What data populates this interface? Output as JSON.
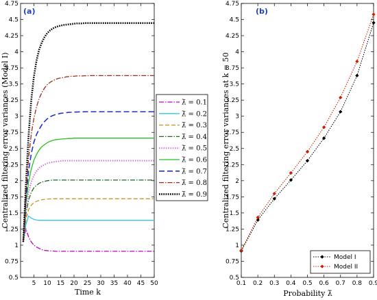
{
  "chart_data": [
    {
      "type": "line",
      "panel_label": "(a)",
      "xlabel": "Time k",
      "ylabel": "Centralized filtering error variances (Model I)",
      "xlim": [
        0,
        50
      ],
      "ylim": [
        0.5,
        4.75
      ],
      "xticks": [
        5,
        10,
        15,
        20,
        25,
        30,
        35,
        40,
        45,
        50
      ],
      "yticks": [
        0.5,
        0.75,
        1,
        1.25,
        1.5,
        1.75,
        2,
        2.25,
        2.5,
        2.75,
        3,
        3.25,
        3.5,
        3.75,
        4,
        4.25,
        4.5,
        4.75
      ],
      "legend_position": "right-outside",
      "x": [
        1,
        2,
        3,
        4,
        5,
        6,
        7,
        8,
        9,
        10,
        11,
        12,
        13,
        14,
        15,
        16,
        17,
        18,
        19,
        20,
        21,
        22,
        23,
        24,
        25,
        26,
        27,
        28,
        29,
        30,
        31,
        32,
        33,
        34,
        35,
        36,
        37,
        38,
        39,
        40,
        41,
        42,
        43,
        44,
        45,
        46,
        47,
        48,
        49,
        50
      ],
      "series": [
        {
          "name": "λ̄ = 0.1",
          "color": "#c000c0",
          "dash": "7 2 1.5 2",
          "width": 1.3,
          "values": [
            1.05,
            1.25,
            1.13,
            1.05,
            1.0,
            0.97,
            0.95,
            0.93,
            0.92,
            0.915,
            0.91,
            0.91,
            0.905,
            0.905,
            0.905,
            0.905,
            0.905,
            0.905,
            0.905,
            0.905,
            0.905,
            0.905,
            0.905,
            0.905,
            0.905,
            0.905,
            0.905,
            0.905,
            0.905,
            0.905,
            0.905,
            0.905,
            0.905,
            0.905,
            0.905,
            0.905,
            0.905,
            0.905,
            0.905,
            0.905,
            0.905,
            0.905,
            0.905,
            0.905,
            0.905,
            0.905,
            0.905,
            0.905,
            0.905,
            0.905
          ]
        },
        {
          "name": "λ̄ = 0.2",
          "color": "#30c8e8",
          "dash": "",
          "width": 1.3,
          "values": [
            1.05,
            1.32,
            1.45,
            1.42,
            1.4,
            1.39,
            1.385,
            1.385,
            1.385,
            1.385,
            1.385,
            1.385,
            1.385,
            1.385,
            1.385,
            1.385,
            1.385,
            1.385,
            1.385,
            1.385,
            1.385,
            1.385,
            1.385,
            1.385,
            1.385,
            1.385,
            1.385,
            1.385,
            1.385,
            1.385,
            1.385,
            1.385,
            1.385,
            1.385,
            1.385,
            1.385,
            1.385,
            1.385,
            1.385,
            1.385,
            1.385,
            1.385,
            1.385,
            1.385,
            1.385,
            1.385,
            1.385,
            1.385,
            1.385,
            1.385
          ]
        },
        {
          "name": "λ̄ = 0.3",
          "color": "#c8961e",
          "dash": "6 3",
          "width": 1.3,
          "values": [
            1.05,
            1.4,
            1.55,
            1.62,
            1.66,
            1.68,
            1.695,
            1.705,
            1.71,
            1.715,
            1.718,
            1.72,
            1.72,
            1.72,
            1.72,
            1.72,
            1.72,
            1.72,
            1.72,
            1.72,
            1.72,
            1.72,
            1.72,
            1.72,
            1.72,
            1.72,
            1.72,
            1.72,
            1.72,
            1.72,
            1.72,
            1.72,
            1.72,
            1.72,
            1.72,
            1.72,
            1.72,
            1.72,
            1.72,
            1.72,
            1.72,
            1.72,
            1.72,
            1.72,
            1.72,
            1.72,
            1.72,
            1.72,
            1.72,
            1.72
          ]
        },
        {
          "name": "λ̄ = 0.4",
          "color": "#1a6b1a",
          "dash": "7 2 1.5 2",
          "width": 1.3,
          "values": [
            1.05,
            1.48,
            1.7,
            1.82,
            1.89,
            1.93,
            1.96,
            1.98,
            1.99,
            2.0,
            2.005,
            2.01,
            2.01,
            2.01,
            2.01,
            2.01,
            2.01,
            2.01,
            2.01,
            2.01,
            2.01,
            2.01,
            2.01,
            2.01,
            2.01,
            2.01,
            2.01,
            2.01,
            2.01,
            2.01,
            2.01,
            2.01,
            2.01,
            2.01,
            2.01,
            2.01,
            2.01,
            2.01,
            2.01,
            2.01,
            2.01,
            2.01,
            2.01,
            2.01,
            2.01,
            2.01,
            2.01,
            2.01,
            2.01,
            2.01
          ]
        },
        {
          "name": "λ̄ = 0.5",
          "color": "#d070d0",
          "dash": "1.5 1.8",
          "width": 2,
          "values": [
            1.05,
            1.55,
            1.82,
            1.98,
            2.08,
            2.15,
            2.2,
            2.23,
            2.25,
            2.27,
            2.28,
            2.29,
            2.295,
            2.3,
            2.305,
            2.31,
            2.31,
            2.31,
            2.31,
            2.31,
            2.31,
            2.31,
            2.31,
            2.31,
            2.31,
            2.31,
            2.31,
            2.31,
            2.31,
            2.31,
            2.31,
            2.31,
            2.31,
            2.31,
            2.31,
            2.31,
            2.31,
            2.31,
            2.31,
            2.31,
            2.31,
            2.31,
            2.31,
            2.31,
            2.31,
            2.31,
            2.31,
            2.31,
            2.31,
            2.31
          ]
        },
        {
          "name": "λ̄ = 0.6",
          "color": "#22c422",
          "dash": "",
          "width": 1.3,
          "values": [
            1.05,
            1.65,
            1.98,
            2.18,
            2.32,
            2.41,
            2.48,
            2.53,
            2.56,
            2.59,
            2.61,
            2.625,
            2.635,
            2.64,
            2.645,
            2.65,
            2.65,
            2.655,
            2.655,
            2.66,
            2.66,
            2.66,
            2.66,
            2.66,
            2.66,
            2.66,
            2.66,
            2.66,
            2.66,
            2.66,
            2.66,
            2.66,
            2.66,
            2.66,
            2.66,
            2.66,
            2.66,
            2.66,
            2.66,
            2.66,
            2.66,
            2.66,
            2.66,
            2.66,
            2.66,
            2.66,
            2.66,
            2.66,
            2.66,
            2.66
          ]
        },
        {
          "name": "λ̄ = 0.7",
          "color": "#1e32c8",
          "dash": "8 4",
          "width": 1.6,
          "values": [
            1.05,
            1.72,
            2.15,
            2.42,
            2.6,
            2.72,
            2.8,
            2.87,
            2.92,
            2.96,
            2.99,
            3.01,
            3.025,
            3.035,
            3.045,
            3.05,
            3.055,
            3.06,
            3.062,
            3.065,
            3.065,
            3.068,
            3.068,
            3.07,
            3.07,
            3.07,
            3.07,
            3.07,
            3.07,
            3.07,
            3.07,
            3.07,
            3.07,
            3.07,
            3.07,
            3.07,
            3.07,
            3.07,
            3.07,
            3.07,
            3.07,
            3.07,
            3.07,
            3.07,
            3.07,
            3.07,
            3.07,
            3.07,
            3.07,
            3.07
          ]
        },
        {
          "name": "λ̄ = 0.8",
          "color": "#a02a1a",
          "dash": "7 2 1.5 2",
          "width": 1.3,
          "values": [
            1.05,
            1.82,
            2.35,
            2.72,
            2.97,
            3.15,
            3.28,
            3.37,
            3.44,
            3.49,
            3.525,
            3.55,
            3.57,
            3.585,
            3.595,
            3.6,
            3.61,
            3.615,
            3.62,
            3.62,
            3.625,
            3.625,
            3.625,
            3.628,
            3.628,
            3.63,
            3.63,
            3.63,
            3.63,
            3.63,
            3.63,
            3.63,
            3.63,
            3.63,
            3.63,
            3.63,
            3.63,
            3.63,
            3.63,
            3.63,
            3.63,
            3.63,
            3.63,
            3.63,
            3.63,
            3.63,
            3.63,
            3.63,
            3.63,
            3.63
          ]
        },
        {
          "name": "λ̄ = 0.9",
          "color": "#000000",
          "dash": "1.6 1.6",
          "width": 2.6,
          "values": [
            1.05,
            1.95,
            2.7,
            3.25,
            3.62,
            3.87,
            4.04,
            4.15,
            4.23,
            4.29,
            4.33,
            4.36,
            4.38,
            4.395,
            4.405,
            4.415,
            4.42,
            4.425,
            4.43,
            4.435,
            4.44,
            4.44,
            4.44,
            4.445,
            4.445,
            4.445,
            4.445,
            4.445,
            4.445,
            4.445,
            4.445,
            4.445,
            4.445,
            4.445,
            4.445,
            4.445,
            4.445,
            4.445,
            4.445,
            4.445,
            4.445,
            4.445,
            4.445,
            4.445,
            4.445,
            4.445,
            4.445,
            4.445,
            4.445,
            4.445
          ]
        }
      ]
    },
    {
      "type": "line",
      "panel_label": "(b)",
      "xlabel": "Probability λ̄",
      "ylabel": "Centralized filtering error variances at k = 50",
      "xlim": [
        0.1,
        0.9
      ],
      "ylim": [
        0.5,
        4.75
      ],
      "xticks": [
        0.1,
        0.2,
        0.3,
        0.4,
        0.5,
        0.6,
        0.7,
        0.8,
        0.9
      ],
      "yticks": [
        0.5,
        0.75,
        1,
        1.25,
        1.5,
        1.75,
        2,
        2.25,
        2.5,
        2.75,
        3,
        3.25,
        3.5,
        3.75,
        4,
        4.25,
        4.5,
        4.75
      ],
      "legend_position": "bottom-right",
      "x": [
        0.1,
        0.2,
        0.3,
        0.4,
        0.5,
        0.6,
        0.7,
        0.8,
        0.9
      ],
      "series": [
        {
          "name": "Model I",
          "color": "#000000",
          "marker": "diamond",
          "values": [
            0.91,
            1.39,
            1.72,
            2.01,
            2.31,
            2.66,
            3.07,
            3.63,
            4.45
          ]
        },
        {
          "name": "Model II",
          "color": "#cc2200",
          "marker": "diamond",
          "values": [
            0.92,
            1.43,
            1.8,
            2.12,
            2.45,
            2.83,
            3.29,
            3.85,
            4.58
          ]
        }
      ]
    }
  ]
}
